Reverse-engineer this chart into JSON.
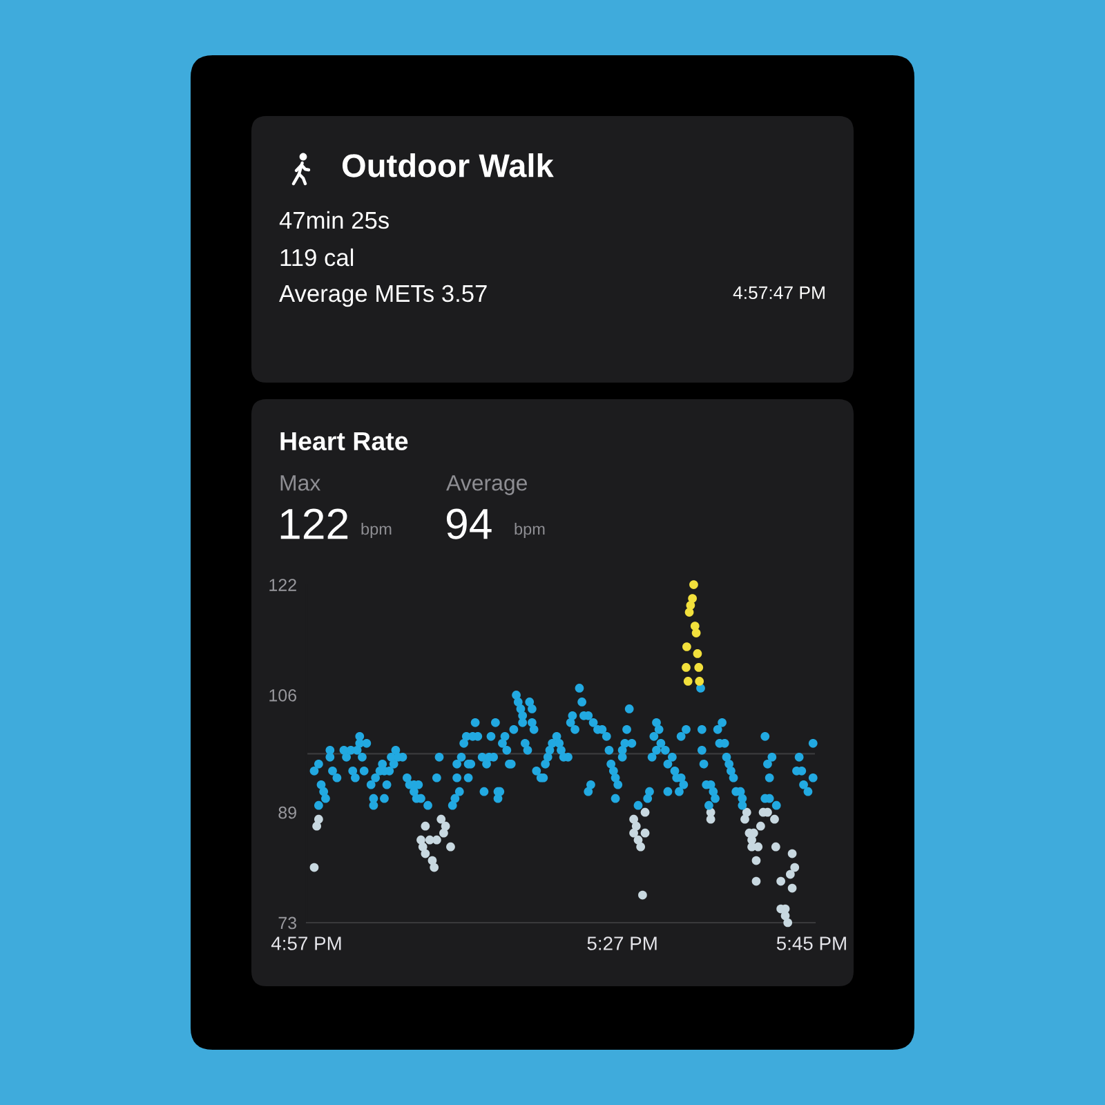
{
  "chart_data": {
    "type": "scatter",
    "title": "Heart Rate",
    "annotations": [
      "Outdoor Walk",
      "47min 25s",
      "119 cal",
      "Average METs 3.57",
      "4:57:47 PM",
      "Max",
      "122",
      "bpm",
      "Average",
      "94",
      "bpm"
    ],
    "marker": "circle",
    "xlim": [
      16.95,
      17.755
    ],
    "ylim": [
      73,
      122
    ],
    "xticks": [
      {
        "value": 16.95,
        "label": "4:57 PM"
      },
      {
        "value": 17.45,
        "label": "5:27 PM"
      },
      {
        "value": 17.75,
        "label": "5:45 PM"
      }
    ],
    "yticks": [
      73,
      89,
      106,
      122
    ],
    "ref_lines": [
      {
        "axis": "y",
        "value": 97.5,
        "color": "#3a3a3c"
      }
    ],
    "series": [
      {
        "color": "#c8d8e0",
        "x": [
          16.962,
          16.966,
          16.969,
          17.131,
          17.134,
          17.138,
          17.138,
          17.145,
          17.149,
          17.152,
          17.156,
          17.163,
          17.167,
          17.17,
          17.178,
          17.468,
          17.472,
          17.468,
          17.475,
          17.486,
          17.479,
          17.482,
          17.486,
          17.59,
          17.59,
          17.647,
          17.644,
          17.651,
          17.658,
          17.655,
          17.655,
          17.665,
          17.662,
          17.662,
          17.669,
          17.673,
          17.68,
          17.691,
          17.693,
          17.701,
          17.719,
          17.723,
          17.716,
          17.719,
          17.701,
          17.708,
          17.708,
          17.712
        ],
        "values": [
          81,
          87,
          88,
          85,
          84,
          87,
          83,
          85,
          82,
          81,
          85,
          88,
          86,
          87,
          84,
          88,
          87,
          86,
          85,
          86,
          84,
          77,
          89,
          89,
          88,
          89,
          88,
          86,
          86,
          85,
          84,
          84,
          82,
          79,
          87,
          89,
          89,
          88,
          84,
          79,
          83,
          81,
          80,
          78,
          75,
          75,
          74,
          73
        ]
      },
      {
        "color": "#22a9e1",
        "x": [
          16.962,
          16.969,
          16.969,
          16.973,
          16.977,
          16.98,
          16.987,
          16.987,
          16.991,
          16.998,
          17.009,
          17.013,
          17.02,
          17.023,
          17.027,
          17.03,
          17.034,
          17.034,
          17.038,
          17.041,
          17.045,
          17.052,
          17.056,
          17.056,
          17.059,
          17.066,
          17.07,
          17.073,
          17.073,
          17.077,
          17.081,
          17.084,
          17.088,
          17.091,
          17.095,
          17.102,
          17.109,
          17.113,
          17.12,
          17.12,
          17.124,
          17.127,
          17.131,
          17.142,
          17.156,
          17.16,
          17.181,
          17.185,
          17.188,
          17.188,
          17.192,
          17.195,
          17.199,
          17.203,
          17.206,
          17.206,
          17.21,
          17.213,
          17.217,
          17.221,
          17.228,
          17.231,
          17.235,
          17.239,
          17.242,
          17.246,
          17.249,
          17.253,
          17.253,
          17.256,
          17.26,
          17.264,
          17.267,
          17.271,
          17.274,
          17.278,
          17.282,
          17.285,
          17.289,
          17.292,
          17.292,
          17.296,
          17.3,
          17.303,
          17.307,
          17.307,
          17.31,
          17.314,
          17.321,
          17.325,
          17.328,
          17.332,
          17.335,
          17.339,
          17.346,
          17.35,
          17.353,
          17.357,
          17.364,
          17.368,
          17.371,
          17.375,
          17.382,
          17.386,
          17.389,
          17.396,
          17.396,
          17.4,
          17.404,
          17.411,
          17.418,
          17.425,
          17.429,
          17.432,
          17.436,
          17.439,
          17.439,
          17.443,
          17.45,
          17.45,
          17.454,
          17.457,
          17.461,
          17.465,
          17.475,
          17.49,
          17.493,
          17.497,
          17.5,
          17.504,
          17.504,
          17.508,
          17.511,
          17.518,
          17.522,
          17.522,
          17.529,
          17.533,
          17.536,
          17.54,
          17.543,
          17.543,
          17.547,
          17.551,
          17.574,
          17.576,
          17.576,
          17.579,
          17.583,
          17.587,
          17.59,
          17.594,
          17.597,
          17.601,
          17.604,
          17.608,
          17.612,
          17.615,
          17.619,
          17.622,
          17.626,
          17.63,
          17.637,
          17.64,
          17.64,
          17.676,
          17.676,
          17.68,
          17.683,
          17.683,
          17.687,
          17.694,
          17.726,
          17.73,
          17.734,
          17.737,
          17.744,
          17.752,
          17.752
        ],
        "values": [
          95,
          96,
          90,
          93,
          92,
          91,
          98,
          97,
          95,
          94,
          98,
          97,
          98,
          95,
          94,
          98,
          100,
          99,
          97,
          95,
          99,
          93,
          91,
          90,
          94,
          95,
          96,
          95,
          91,
          93,
          95,
          97,
          96,
          98,
          97,
          97,
          94,
          93,
          93,
          92,
          91,
          93,
          91,
          90,
          94,
          97,
          90,
          91,
          94,
          96,
          92,
          97,
          99,
          100,
          96,
          94,
          96,
          100,
          102,
          100,
          97,
          92,
          96,
          97,
          100,
          97,
          102,
          92,
          91,
          92,
          99,
          100,
          98,
          96,
          96,
          101,
          106,
          105,
          104,
          103,
          102,
          99,
          98,
          105,
          104,
          102,
          101,
          95,
          94,
          94,
          96,
          97,
          98,
          99,
          100,
          99,
          98,
          97,
          97,
          102,
          103,
          101,
          107,
          105,
          103,
          103,
          92,
          93,
          102,
          101,
          101,
          100,
          98,
          96,
          95,
          94,
          91,
          93,
          98,
          97,
          99,
          101,
          104,
          99,
          90,
          91,
          92,
          97,
          100,
          102,
          98,
          101,
          99,
          98,
          96,
          92,
          97,
          95,
          94,
          92,
          94,
          100,
          93,
          101,
          107,
          101,
          98,
          96,
          93,
          90,
          93,
          92,
          91,
          101,
          99,
          102,
          99,
          97,
          96,
          95,
          94,
          92,
          92,
          91,
          90,
          100,
          91,
          96,
          94,
          91,
          97,
          90,
          95,
          97,
          95,
          93,
          92,
          99,
          94
        ]
      },
      {
        "color": "#f2e03c",
        "x": [
          17.551,
          17.552,
          17.554,
          17.556,
          17.558,
          17.561,
          17.563,
          17.565,
          17.567,
          17.569,
          17.571,
          17.572
        ],
        "values": [
          110,
          113,
          108,
          118,
          119,
          120,
          122,
          116,
          115,
          112,
          110,
          108
        ]
      }
    ]
  }
}
